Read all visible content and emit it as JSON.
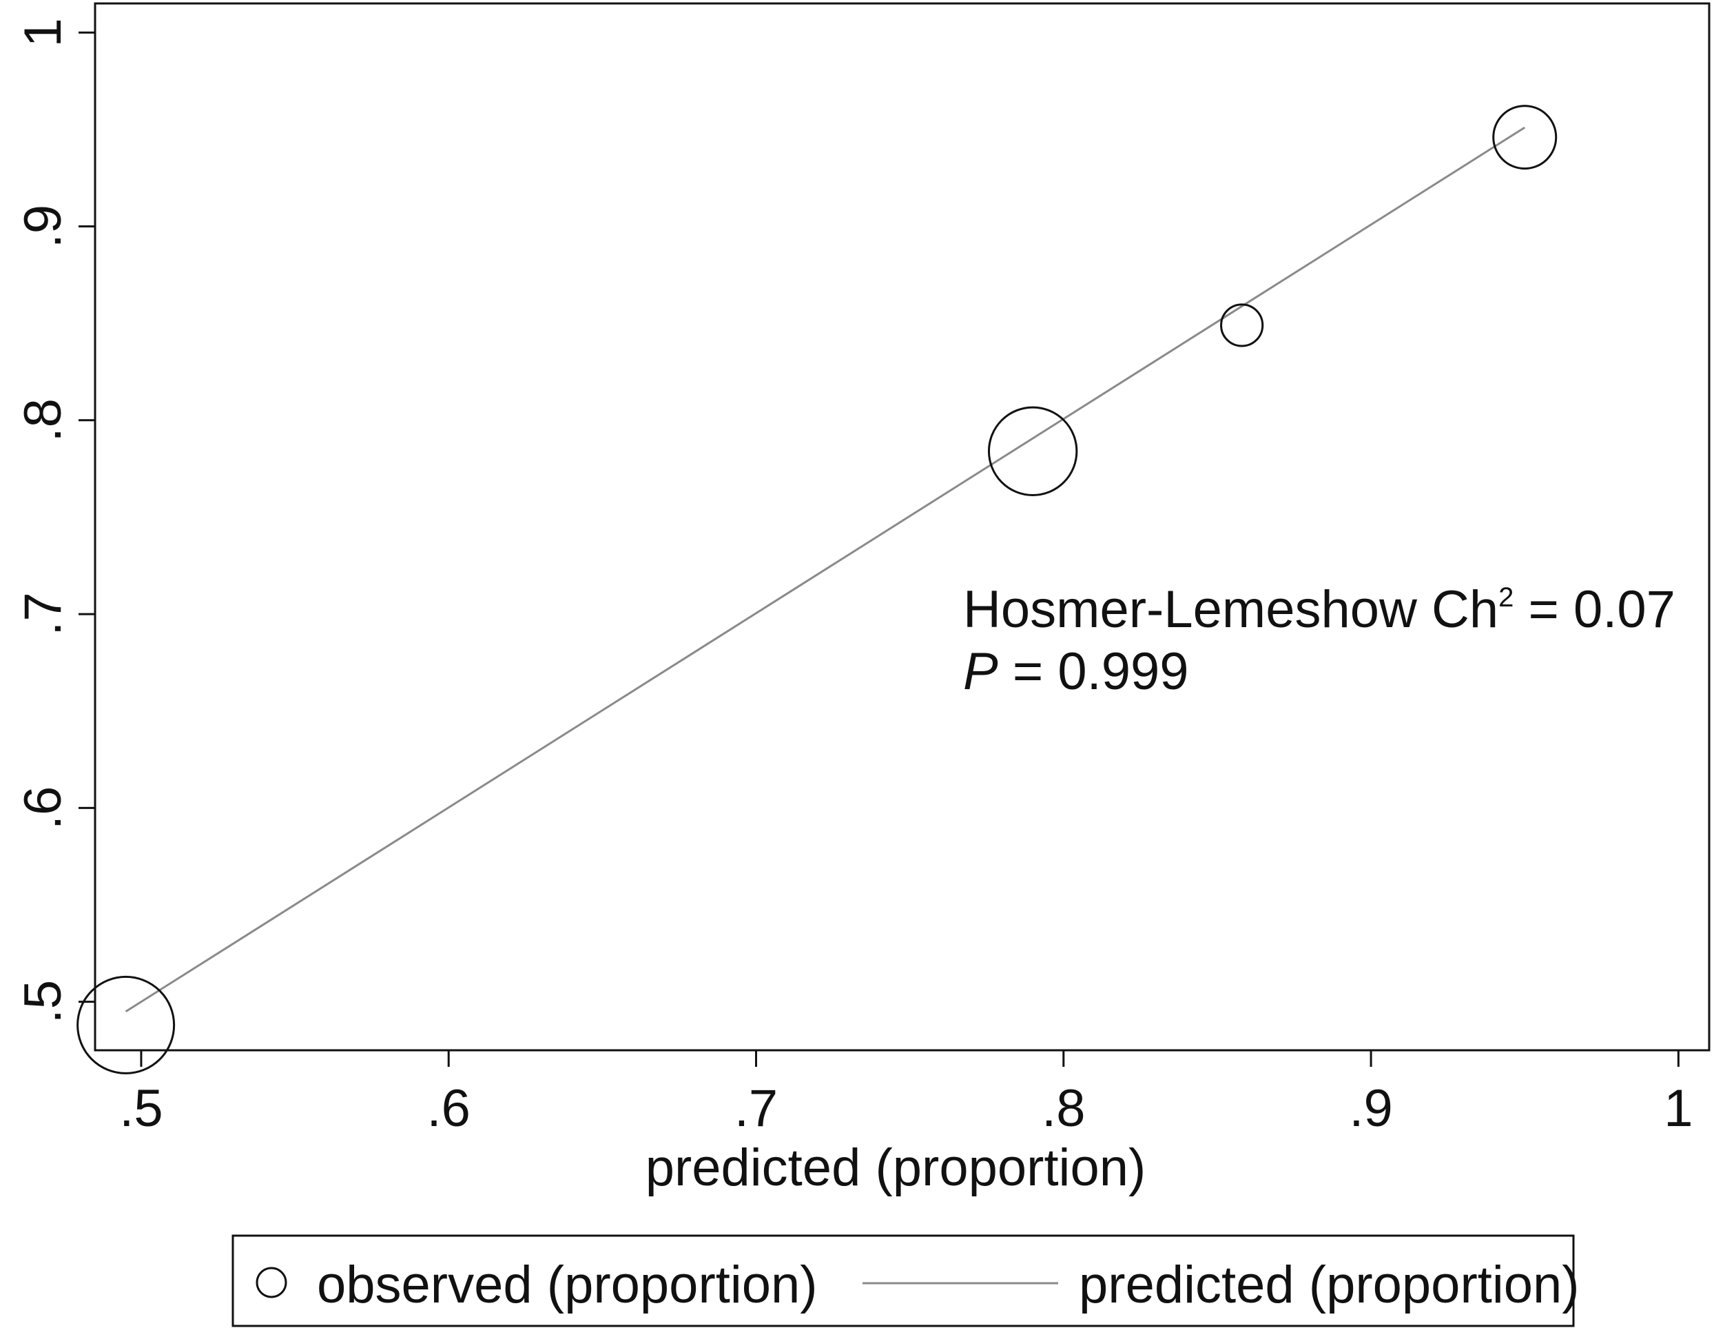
{
  "chart_data": {
    "type": "scatter",
    "xlabel": "predicted (proportion)",
    "ylabel": "",
    "xlim": [
      0.485,
      1.01
    ],
    "ylim": [
      0.475,
      1.015
    ],
    "x_ticks": [
      0.5,
      0.6,
      0.7,
      0.8,
      0.9,
      1.0
    ],
    "x_tick_labels": [
      ".5",
      ".6",
      ".7",
      ".8",
      ".9",
      "1"
    ],
    "y_ticks": [
      0.5,
      0.6,
      0.7,
      0.8,
      0.9,
      1.0
    ],
    "y_tick_labels": [
      ".5",
      ".6",
      ".7",
      ".8",
      ".9",
      "1"
    ],
    "grid": false,
    "series": [
      {
        "name": "observed (proportion)",
        "kind": "scatter",
        "marker": "hollow-circle",
        "color": "#111111",
        "points": [
          {
            "x": 0.495,
            "y": 0.488,
            "size": 1.0
          },
          {
            "x": 0.79,
            "y": 0.784,
            "size": 0.91
          },
          {
            "x": 0.858,
            "y": 0.849,
            "size": 0.43
          },
          {
            "x": 0.95,
            "y": 0.946,
            "size": 0.65
          }
        ]
      },
      {
        "name": "predicted (proportion)",
        "kind": "line",
        "color": "#8a8a8a",
        "x": [
          0.495,
          0.95
        ],
        "y": [
          0.495,
          0.951
        ]
      }
    ],
    "annotation": {
      "line1_main": "Hosmer-Lemeshow Ch",
      "line1_sup": "2",
      "line1_rest": " = 0.07",
      "line2_italic": "P",
      "line2_rest": " = 0.999"
    },
    "legend": {
      "position": "bottom",
      "items": [
        "observed (proportion)",
        "predicted (proportion)"
      ]
    }
  }
}
